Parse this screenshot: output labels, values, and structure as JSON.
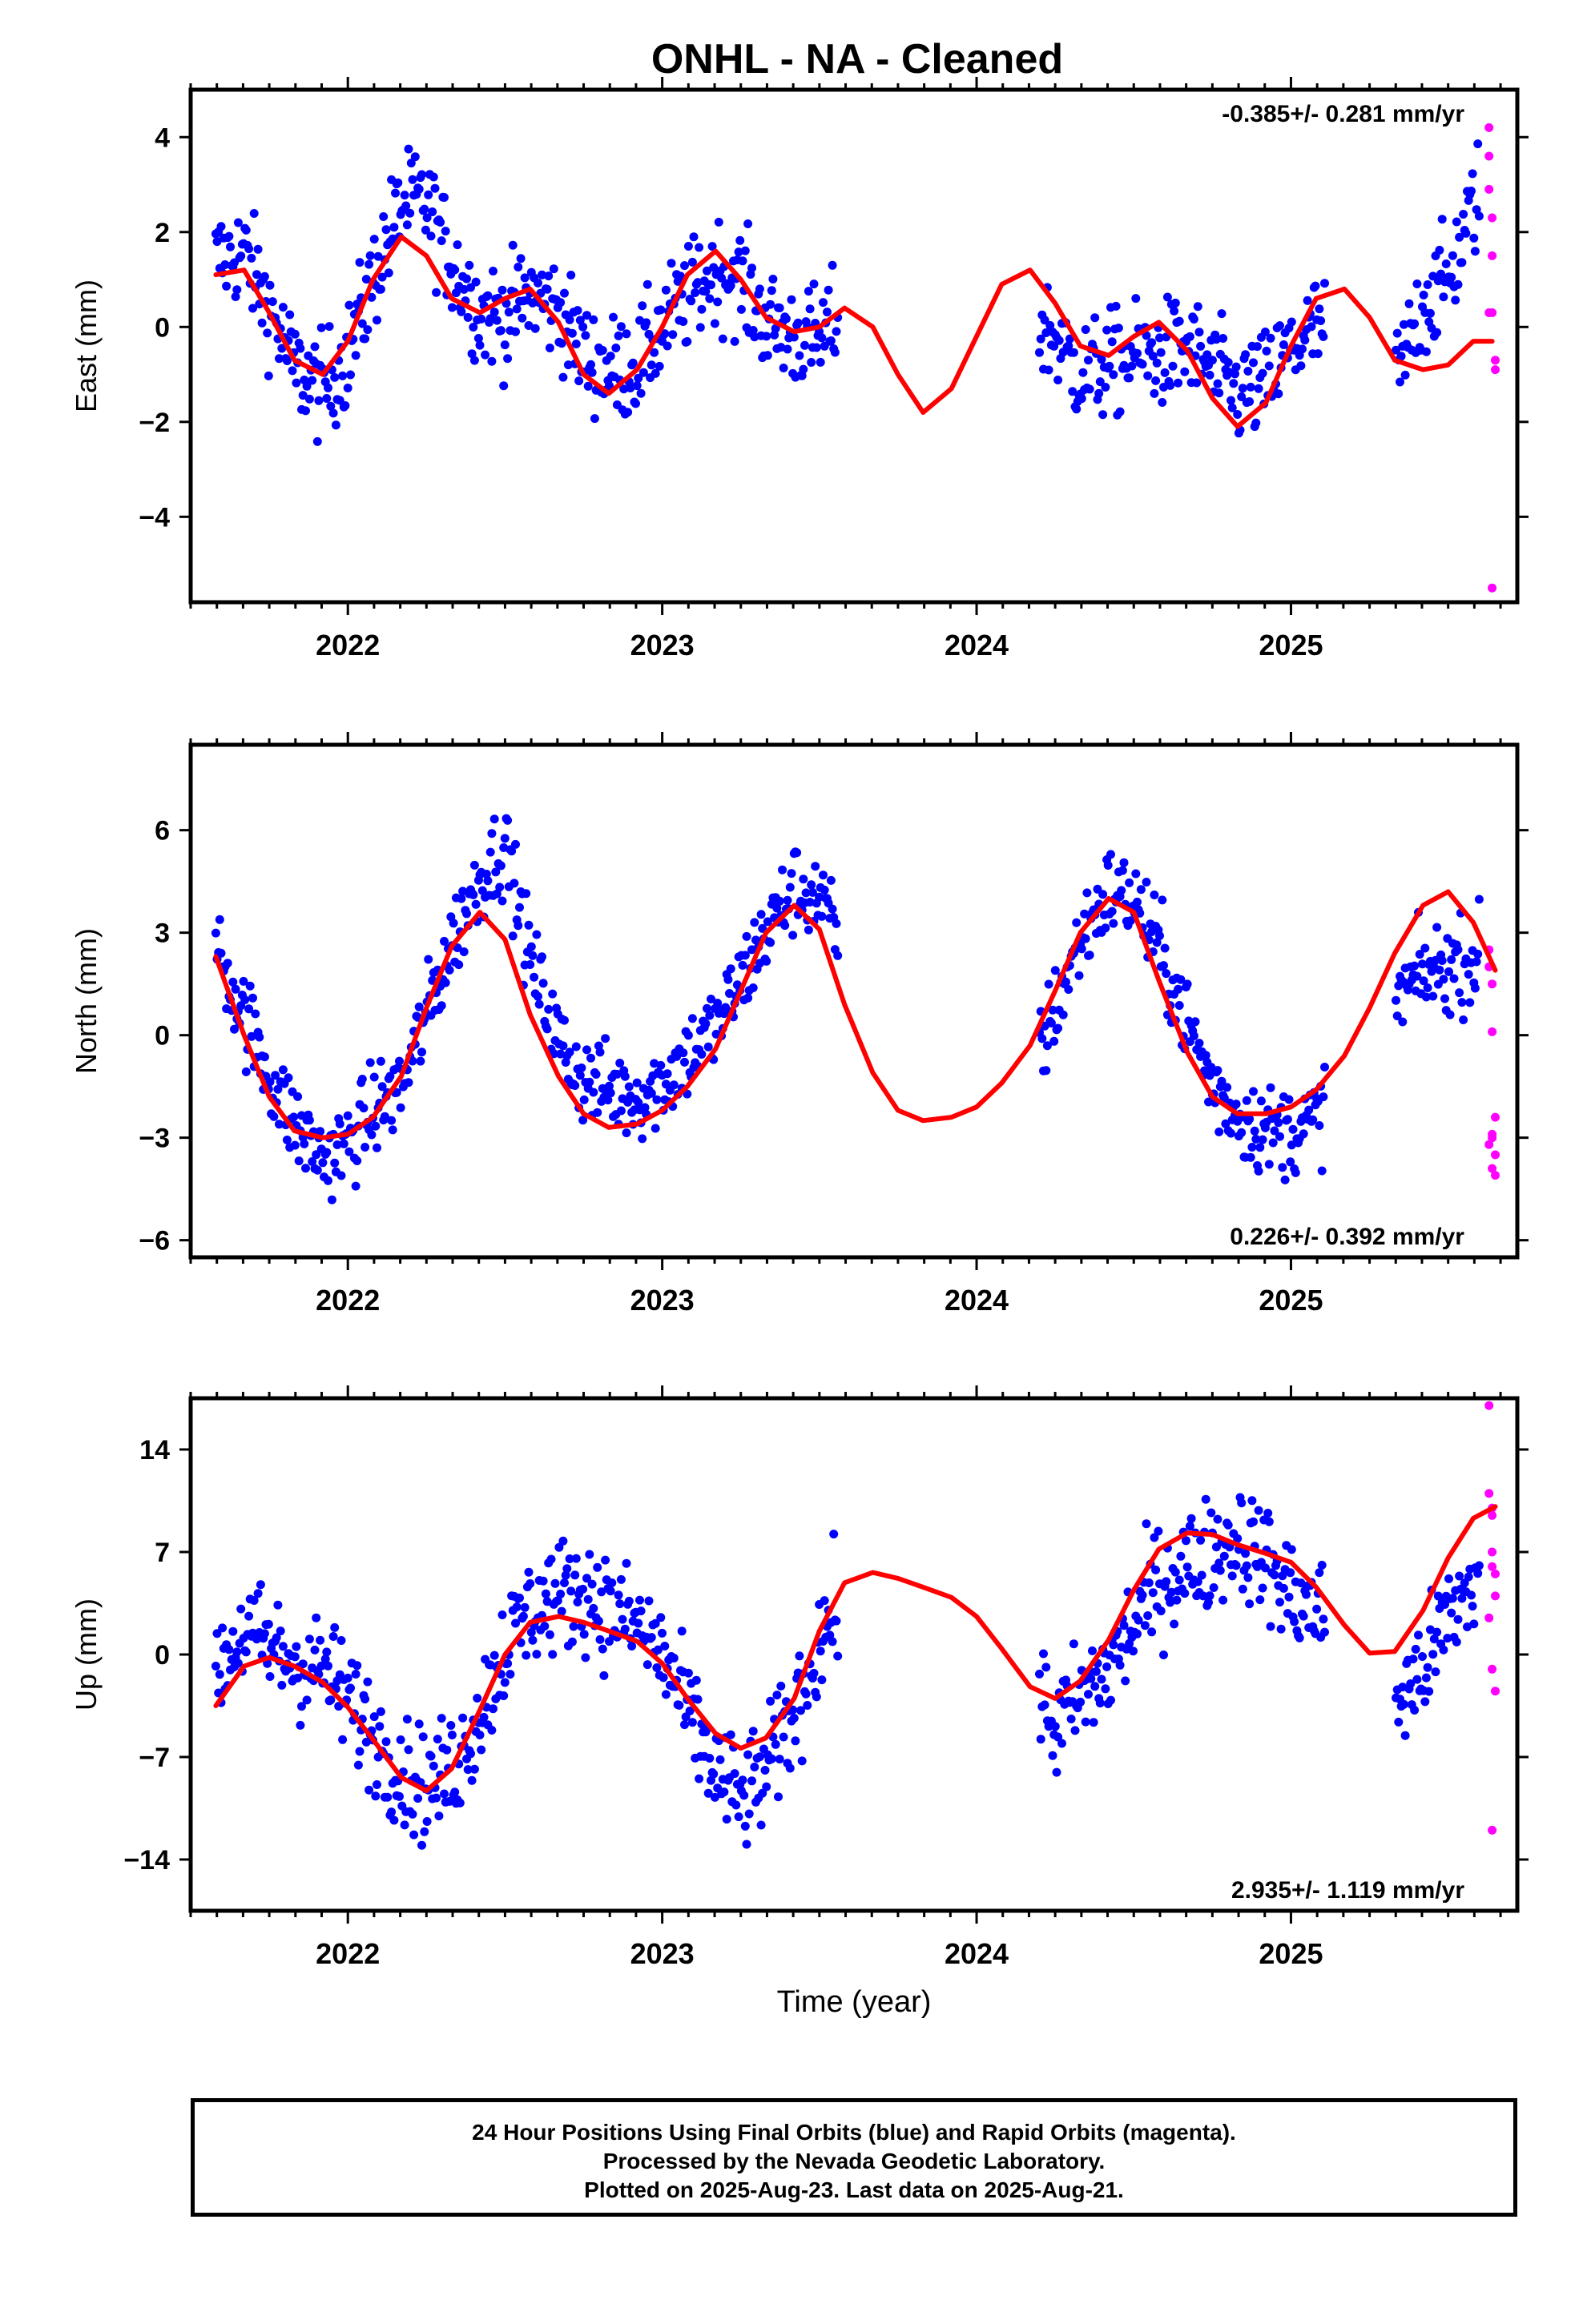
{
  "title": "ONHL  - NA - Cleaned",
  "footer": {
    "line1": "24 Hour Positions Using Final Orbits (blue) and Rapid Orbits (magenta).",
    "line2": "Processed by the Nevada Geodetic Laboratory.",
    "line3": "Plotted on 2025-Aug-23. Last data on 2025-Aug-21."
  },
  "colors": {
    "final": "#0000ff",
    "rapid": "#ff00ff",
    "model": "#ff0000",
    "axis": "#000000"
  },
  "chart_data": [
    {
      "type": "scatter",
      "title": "ONHL  - NA - Cleaned",
      "ylabel": "East (mm)",
      "xlabel": "",
      "xlim": [
        2021.5,
        2025.72
      ],
      "ylim": [
        -5.8,
        5.0
      ],
      "yticks": [
        -4,
        -2,
        0,
        2,
        4
      ],
      "xticks": [
        2022,
        2023,
        2024,
        2025
      ],
      "rate": "-0.385+/- 0.281 mm/yr",
      "rate_position": "top-right",
      "model": {
        "x": [
          2021.58,
          2021.67,
          2021.75,
          2021.83,
          2021.92,
          2022.0,
          2022.08,
          2022.17,
          2022.25,
          2022.33,
          2022.42,
          2022.5,
          2022.58,
          2022.67,
          2022.75,
          2022.83,
          2022.92,
          2023.0,
          2023.08,
          2023.17,
          2023.25,
          2023.33,
          2023.42,
          2023.5,
          2023.58,
          2023.67,
          2023.75,
          2023.83,
          2023.92,
          2024.0,
          2024.08,
          2024.17,
          2024.25,
          2024.33,
          2024.42,
          2024.5,
          2024.58,
          2024.67,
          2024.75,
          2024.83,
          2024.92,
          2025.0,
          2025.08,
          2025.17,
          2025.25,
          2025.33,
          2025.42,
          2025.5,
          2025.58,
          2025.64
        ],
        "y": [
          1.1,
          1.2,
          0.3,
          -0.7,
          -1.0,
          -0.3,
          1.0,
          1.9,
          1.5,
          0.6,
          0.3,
          0.6,
          0.8,
          0.1,
          -1.0,
          -1.4,
          -0.9,
          0.0,
          1.1,
          1.6,
          1.0,
          0.2,
          -0.1,
          0.0,
          0.4,
          0.0,
          -1.0,
          -1.8,
          -1.3,
          -0.2,
          0.9,
          1.2,
          0.5,
          -0.4,
          -0.6,
          -0.2,
          0.1,
          -0.5,
          -1.5,
          -2.1,
          -1.6,
          -0.4,
          0.6,
          0.8,
          0.2,
          -0.7,
          -0.9,
          -0.8,
          -0.3,
          -0.3
        ]
      },
      "final_envelope": {
        "x": [
          2021.58,
          2021.67,
          2021.75,
          2021.83,
          2021.92,
          2022.0,
          2022.08,
          2022.17,
          2022.25,
          2022.33,
          2022.42,
          2022.5,
          2022.58,
          2022.67,
          2022.75,
          2022.83,
          2022.92,
          2023.0,
          2023.08,
          2023.17,
          2023.25,
          2023.33,
          2023.42,
          2023.5,
          2023.55,
          2024.2,
          2024.25,
          2024.33,
          2024.42,
          2024.5,
          2024.58,
          2024.67,
          2024.75,
          2024.83,
          2024.92,
          2025.0,
          2025.08,
          2025.35,
          2025.42,
          2025.5,
          2025.58,
          2025.6
        ],
        "y": [
          1.4,
          1.6,
          0.4,
          -0.9,
          -1.3,
          -0.6,
          1.0,
          2.6,
          2.6,
          1.4,
          0.3,
          0.2,
          0.7,
          0.4,
          -0.6,
          -0.9,
          -0.8,
          0.0,
          0.6,
          1.2,
          1.0,
          0.1,
          -0.2,
          -0.3,
          0.1,
          0.0,
          -0.2,
          -1.0,
          -0.8,
          -0.6,
          -0.6,
          -0.4,
          -0.9,
          -1.4,
          -1.2,
          -0.5,
          0.0,
          -0.9,
          0.5,
          1.0,
          2.5,
          3.0
        ]
      },
      "final_spread": 1.1,
      "rapid": {
        "x": [
          2025.63,
          2025.63,
          2025.63,
          2025.64,
          2025.64,
          2025.64,
          2025.65,
          2025.65,
          2025.63,
          2025.64
        ],
        "y": [
          4.2,
          3.6,
          2.9,
          2.3,
          1.5,
          0.3,
          -0.7,
          -0.9,
          0.3,
          -5.5
        ]
      }
    },
    {
      "type": "scatter",
      "ylabel": "North (mm)",
      "xlabel": "",
      "xlim": [
        2021.5,
        2025.72
      ],
      "ylim": [
        -6.5,
        8.5
      ],
      "yticks": [
        -6,
        -3,
        0,
        3,
        6
      ],
      "xticks": [
        2022,
        2023,
        2024,
        2025
      ],
      "rate": "0.226+/- 0.392 mm/yr",
      "rate_position": "bottom-right",
      "model": {
        "x": [
          2021.58,
          2021.67,
          2021.75,
          2021.83,
          2021.92,
          2022.0,
          2022.08,
          2022.17,
          2022.25,
          2022.33,
          2022.42,
          2022.5,
          2022.58,
          2022.67,
          2022.75,
          2022.83,
          2022.92,
          2023.0,
          2023.08,
          2023.17,
          2023.25,
          2023.33,
          2023.42,
          2023.5,
          2023.58,
          2023.67,
          2023.75,
          2023.83,
          2023.92,
          2024.0,
          2024.08,
          2024.17,
          2024.25,
          2024.33,
          2024.42,
          2024.5,
          2024.58,
          2024.67,
          2024.75,
          2024.83,
          2024.92,
          2025.0,
          2025.08,
          2025.17,
          2025.25,
          2025.33,
          2025.42,
          2025.5,
          2025.58,
          2025.65
        ],
        "y": [
          2.3,
          0.0,
          -1.8,
          -2.8,
          -3.0,
          -2.9,
          -2.4,
          -1.2,
          0.8,
          2.6,
          3.6,
          2.8,
          0.6,
          -1.2,
          -2.3,
          -2.7,
          -2.6,
          -2.2,
          -1.5,
          -0.4,
          1.3,
          3.0,
          3.8,
          3.1,
          0.9,
          -1.1,
          -2.2,
          -2.5,
          -2.4,
          -2.1,
          -1.4,
          -0.3,
          1.3,
          3.0,
          4.0,
          3.6,
          1.6,
          -0.5,
          -1.8,
          -2.3,
          -2.3,
          -2.1,
          -1.6,
          -0.6,
          0.8,
          2.4,
          3.8,
          4.2,
          3.3,
          1.9
        ]
      },
      "final_envelope": {
        "x": [
          2021.58,
          2021.67,
          2021.75,
          2021.83,
          2021.92,
          2022.0,
          2022.08,
          2022.17,
          2022.25,
          2022.33,
          2022.42,
          2022.5,
          2022.58,
          2022.67,
          2022.75,
          2022.83,
          2022.92,
          2023.0,
          2023.08,
          2023.17,
          2023.25,
          2023.33,
          2023.42,
          2023.5,
          2023.55,
          2024.2,
          2024.25,
          2024.33,
          2024.42,
          2024.5,
          2024.58,
          2024.67,
          2024.75,
          2024.83,
          2024.92,
          2025.0,
          2025.08,
          2025.35,
          2025.42,
          2025.5,
          2025.58,
          2025.6
        ],
        "y": [
          2.6,
          0.6,
          -1.2,
          -2.6,
          -3.6,
          -3.2,
          -2.2,
          -1.5,
          0.6,
          2.7,
          4.6,
          5.6,
          2.2,
          -0.2,
          -1.3,
          -1.6,
          -1.8,
          -1.4,
          -0.6,
          0.2,
          1.6,
          3.0,
          4.3,
          4.0,
          3.0,
          -0.5,
          0.8,
          2.8,
          4.2,
          4.0,
          2.5,
          0.4,
          -1.5,
          -2.3,
          -2.8,
          -2.8,
          -2.5,
          1.2,
          1.8,
          2.0,
          2.2,
          2.4
        ]
      },
      "final_spread": 1.3,
      "rapid": {
        "x": [
          2025.63,
          2025.63,
          2025.64,
          2025.64,
          2025.64,
          2025.64,
          2025.65,
          2025.65,
          2025.63,
          2025.64,
          2025.65
        ],
        "y": [
          2.5,
          2.0,
          1.5,
          0.1,
          -2.9,
          -3.0,
          -3.5,
          -2.4,
          -3.2,
          -3.9,
          -4.1
        ]
      }
    },
    {
      "type": "scatter",
      "ylabel": "Up (mm)",
      "xlabel": "Time (year)",
      "xlim": [
        2021.5,
        2025.72
      ],
      "ylim": [
        -17.5,
        17.5
      ],
      "yticks": [
        -14,
        -7,
        0,
        7,
        14
      ],
      "xticks": [
        2022,
        2023,
        2024,
        2025
      ],
      "rate": "2.935+/- 1.119 mm/yr",
      "rate_position": "bottom-right",
      "model": {
        "x": [
          2021.58,
          2021.67,
          2021.75,
          2021.83,
          2021.92,
          2022.0,
          2022.08,
          2022.17,
          2022.25,
          2022.33,
          2022.42,
          2022.5,
          2022.58,
          2022.67,
          2022.75,
          2022.83,
          2022.92,
          2023.0,
          2023.08,
          2023.17,
          2023.25,
          2023.33,
          2023.42,
          2023.5,
          2023.58,
          2023.67,
          2023.75,
          2023.83,
          2023.92,
          2024.0,
          2024.08,
          2024.17,
          2024.25,
          2024.33,
          2024.42,
          2024.5,
          2024.58,
          2024.67,
          2024.75,
          2024.83,
          2024.92,
          2025.0,
          2025.08,
          2025.17,
          2025.25,
          2025.33,
          2025.42,
          2025.5,
          2025.58,
          2025.65
        ],
        "y": [
          -3.5,
          -0.8,
          -0.2,
          -0.8,
          -1.9,
          -3.6,
          -5.8,
          -8.4,
          -9.3,
          -7.8,
          -3.8,
          0.0,
          2.2,
          2.6,
          2.2,
          1.6,
          0.9,
          -0.6,
          -3.0,
          -5.4,
          -6.4,
          -5.7,
          -3.0,
          1.6,
          4.9,
          5.6,
          5.2,
          4.6,
          3.9,
          2.6,
          0.4,
          -2.2,
          -3.0,
          -1.8,
          1.0,
          4.4,
          7.2,
          8.3,
          8.2,
          7.5,
          6.9,
          6.3,
          4.6,
          2.0,
          0.1,
          0.2,
          3.0,
          6.6,
          9.3,
          10.1
        ]
      },
      "final_envelope": {
        "x": [
          2021.58,
          2021.67,
          2021.75,
          2021.83,
          2021.92,
          2022.0,
          2022.08,
          2022.17,
          2022.25,
          2022.33,
          2022.42,
          2022.5,
          2022.58,
          2022.67,
          2022.75,
          2022.83,
          2022.92,
          2023.0,
          2023.08,
          2023.17,
          2023.25,
          2023.33,
          2023.42,
          2023.5,
          2023.55,
          2024.2,
          2024.25,
          2024.33,
          2024.42,
          2024.5,
          2024.58,
          2024.67,
          2024.75,
          2024.83,
          2024.92,
          2025.0,
          2025.08,
          2025.35,
          2025.42,
          2025.5,
          2025.58,
          2025.6
        ],
        "y": [
          -1.0,
          1.5,
          0.5,
          -0.5,
          -1.0,
          -3.0,
          -5.5,
          -8.0,
          -9.0,
          -8.0,
          -4.0,
          0.5,
          3.0,
          4.0,
          4.5,
          3.0,
          2.0,
          0.0,
          -4.0,
          -8.0,
          -10.0,
          -8.0,
          -4.0,
          1.0,
          3.0,
          -3.0,
          -5.0,
          -3.0,
          -1.0,
          2.0,
          5.0,
          6.0,
          7.0,
          8.0,
          6.5,
          4.0,
          3.0,
          -3.0,
          -1.0,
          2.5,
          5.0,
          6.0
        ]
      },
      "final_spread": 3.8,
      "rapid": {
        "x": [
          2025.63,
          2025.63,
          2025.64,
          2025.64,
          2025.64,
          2025.64,
          2025.65,
          2025.65,
          2025.63,
          2025.64,
          2025.65,
          2025.64
        ],
        "y": [
          17.0,
          11.0,
          10.0,
          9.5,
          7.0,
          6.0,
          5.5,
          4.0,
          2.5,
          -1.0,
          -2.5,
          -12.0
        ]
      }
    }
  ]
}
